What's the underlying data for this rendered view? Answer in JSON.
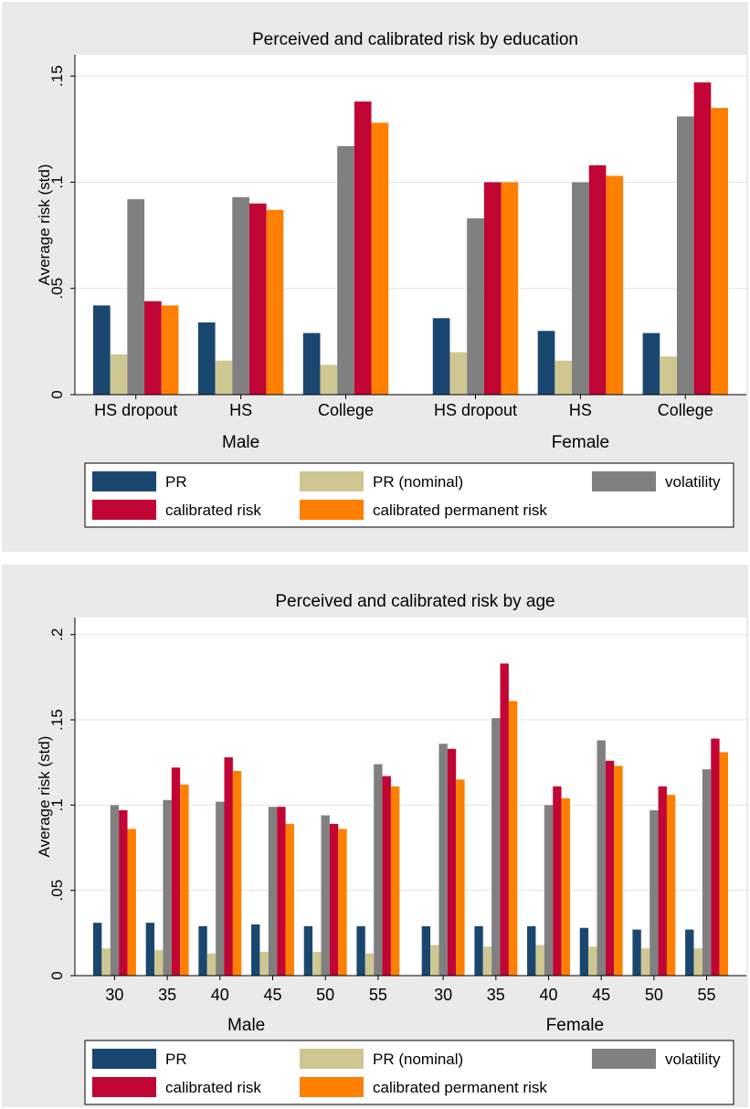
{
  "colors": {
    "PR": "#1a476f",
    "PR (nominal)": "#cfc792",
    "volatility": "#808080",
    "calibrated risk": "#c10534",
    "calibrated permanent risk": "#ff7f00",
    "panel_bg": "#eaeaea"
  },
  "chart_data": [
    {
      "type": "bar",
      "title": "Perceived and calibrated risk by education",
      "xlabel": "",
      "ylabel": "Average risk (std)",
      "ylim": [
        0,
        0.16
      ],
      "yticks": [
        0,
        0.05,
        0.1,
        0.15
      ],
      "ytick_labels": [
        "0",
        ".05",
        ".1",
        ".15"
      ],
      "groups": [
        "Male",
        "Female"
      ],
      "categories": [
        "HS dropout",
        "HS",
        "College"
      ],
      "series": [
        {
          "name": "PR",
          "values": [
            [
              0.042,
              0.034,
              0.029
            ],
            [
              0.036,
              0.03,
              0.029
            ]
          ]
        },
        {
          "name": "PR (nominal)",
          "values": [
            [
              0.019,
              0.016,
              0.014
            ],
            [
              0.02,
              0.016,
              0.018
            ]
          ]
        },
        {
          "name": "volatility",
          "values": [
            [
              0.092,
              0.093,
              0.117
            ],
            [
              0.083,
              0.1,
              0.131
            ]
          ]
        },
        {
          "name": "calibrated risk",
          "values": [
            [
              0.044,
              0.09,
              0.138
            ],
            [
              0.1,
              0.108,
              0.147
            ]
          ]
        },
        {
          "name": "calibrated permanent risk",
          "values": [
            [
              0.042,
              0.087,
              0.128
            ],
            [
              0.1,
              0.103,
              0.135
            ]
          ]
        }
      ],
      "legend": [
        "PR",
        "PR (nominal)",
        "volatility",
        "calibrated risk",
        "calibrated permanent risk"
      ],
      "legend_position": "bottom",
      "grid": true
    },
    {
      "type": "bar",
      "title": "Perceived and calibrated risk by age",
      "xlabel": "",
      "ylabel": "Average risk (std)",
      "ylim": [
        0,
        0.21
      ],
      "yticks": [
        0,
        0.05,
        0.1,
        0.15,
        0.2
      ],
      "ytick_labels": [
        "0",
        ".05",
        ".1",
        ".15",
        ".2"
      ],
      "groups": [
        "Male",
        "Female"
      ],
      "categories": [
        "30",
        "35",
        "40",
        "45",
        "50",
        "55"
      ],
      "series": [
        {
          "name": "PR",
          "values": [
            [
              0.031,
              0.031,
              0.029,
              0.03,
              0.029,
              0.029
            ],
            [
              0.029,
              0.029,
              0.029,
              0.028,
              0.027,
              0.027
            ]
          ]
        },
        {
          "name": "PR (nominal)",
          "values": [
            [
              0.016,
              0.015,
              0.013,
              0.014,
              0.014,
              0.013
            ],
            [
              0.018,
              0.017,
              0.018,
              0.017,
              0.016,
              0.016
            ]
          ]
        },
        {
          "name": "volatility",
          "values": [
            [
              0.1,
              0.103,
              0.102,
              0.099,
              0.094,
              0.124
            ],
            [
              0.136,
              0.151,
              0.1,
              0.138,
              0.097,
              0.121
            ]
          ]
        },
        {
          "name": "calibrated risk",
          "values": [
            [
              0.097,
              0.122,
              0.128,
              0.099,
              0.089,
              0.117
            ],
            [
              0.133,
              0.183,
              0.111,
              0.126,
              0.111,
              0.139
            ]
          ]
        },
        {
          "name": "calibrated permanent risk",
          "values": [
            [
              0.086,
              0.112,
              0.12,
              0.089,
              0.086,
              0.111
            ],
            [
              0.115,
              0.161,
              0.104,
              0.123,
              0.106,
              0.131
            ]
          ]
        }
      ],
      "legend": [
        "PR",
        "PR (nominal)",
        "volatility",
        "calibrated risk",
        "calibrated permanent risk"
      ],
      "legend_position": "bottom",
      "grid": true
    }
  ]
}
